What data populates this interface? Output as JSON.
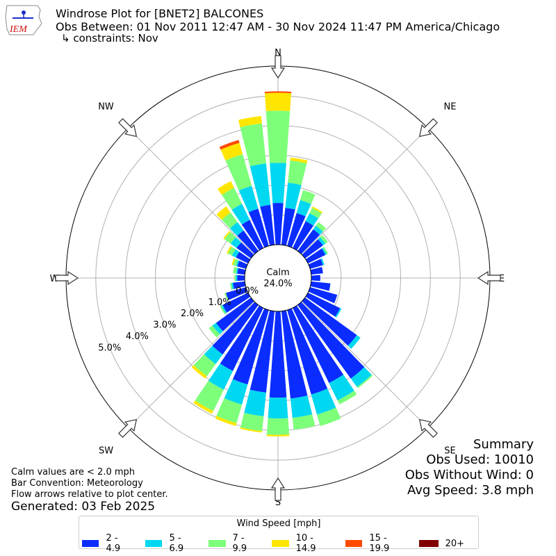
{
  "header": {
    "title_line1": "Windrose Plot for [BNET2] BALCONES",
    "title_line2": "Obs Between: 01 Nov 2011 12:47 AM - 30 Nov 2024 11:47 PM America/Chicago",
    "title_line3": "↳ constraints: Nov",
    "logo_text": "IEM"
  },
  "summary": {
    "heading": "Summary",
    "obs_used": "Obs Used: 10010",
    "obs_without_wind": "Obs Without Wind: 0",
    "avg_speed": "Avg Speed: 3.8 mph"
  },
  "notes": {
    "calm": "Calm values are < 2.0 mph",
    "convention": "Bar Convention: Meteorology",
    "arrows": "Flow arrows relative to plot center.",
    "generated": "Generated: 03 Feb 2025"
  },
  "colors": {
    "bins": [
      "#0a2cff",
      "#00d7f0",
      "#7dff7a",
      "#ffe600",
      "#ff4a00",
      "#800000"
    ],
    "grid": "#b0b0b0"
  },
  "chart_data": {
    "type": "windrose",
    "center_label": "Calm",
    "calm_percent_label": "24.0%",
    "radial_ticks": [
      0.0,
      1.0,
      2.0,
      3.0,
      4.0,
      5.0
    ],
    "radial_tick_labels": [
      "0.0%",
      "1.0%",
      "2.0%",
      "3.0%",
      "4.0%",
      "5.0%"
    ],
    "rmax": 6.0,
    "compass_labels": [
      "N",
      "NE",
      "E",
      "SE",
      "S",
      "SW",
      "W",
      "NW"
    ],
    "legend_title": "Wind Speed [mph]",
    "bins": [
      "2 - 4.9",
      "5 - 6.9",
      "7 - 9.9",
      "10 - 14.9",
      "15 - 19.9",
      "20+"
    ],
    "directions_deg": [
      0,
      10,
      20,
      30,
      40,
      50,
      60,
      70,
      80,
      90,
      100,
      110,
      120,
      130,
      140,
      150,
      160,
      170,
      180,
      190,
      200,
      210,
      220,
      230,
      240,
      250,
      260,
      270,
      280,
      290,
      300,
      310,
      320,
      330,
      340,
      350
    ],
    "cumulative_percent": [
      [
        1.4,
        2.75,
        4.5,
        5.1,
        5.15,
        5.15
      ],
      [
        1.25,
        2.1,
        2.85,
        2.95,
        2.95,
        2.95
      ],
      [
        1.15,
        1.6,
        1.95,
        1.95,
        1.95,
        1.95
      ],
      [
        1.0,
        1.3,
        1.5,
        1.55,
        1.55,
        1.55
      ],
      [
        0.9,
        1.05,
        1.2,
        1.2,
        1.2,
        1.2
      ],
      [
        0.75,
        0.85,
        0.95,
        0.95,
        0.95,
        0.95
      ],
      [
        0.65,
        0.7,
        0.75,
        0.75,
        0.75,
        0.75
      ],
      [
        0.45,
        0.5,
        0.5,
        0.5,
        0.5,
        0.5
      ],
      [
        0.4,
        0.4,
        0.4,
        0.4,
        0.4,
        0.4
      ],
      [
        0.3,
        0.3,
        0.3,
        0.3,
        0.3,
        0.3
      ],
      [
        0.65,
        0.65,
        0.65,
        0.65,
        0.65,
        0.65
      ],
      [
        0.95,
        0.95,
        0.95,
        0.95,
        0.95,
        0.95
      ],
      [
        1.2,
        1.25,
        1.25,
        1.25,
        1.25,
        1.25
      ],
      [
        2.15,
        2.3,
        2.3,
        2.3,
        2.3,
        2.3
      ],
      [
        3.05,
        3.4,
        3.45,
        3.45,
        3.45,
        3.45
      ],
      [
        2.8,
        3.45,
        3.6,
        3.6,
        3.6,
        3.6
      ],
      [
        2.95,
        3.65,
        4.05,
        4.05,
        4.05,
        4.05
      ],
      [
        2.95,
        3.6,
        4.0,
        4.0,
        4.0,
        4.0
      ],
      [
        2.9,
        3.6,
        4.15,
        4.2,
        4.2,
        4.2
      ],
      [
        2.75,
        3.55,
        4.05,
        4.1,
        4.1,
        4.1
      ],
      [
        2.6,
        3.3,
        3.95,
        4.05,
        4.05,
        4.05
      ],
      [
        2.35,
        3.05,
        3.85,
        3.95,
        3.95,
        3.95
      ],
      [
        2.05,
        2.45,
        2.95,
        3.05,
        3.05,
        3.05
      ],
      [
        1.45,
        1.6,
        1.75,
        1.75,
        1.75,
        1.75
      ],
      [
        0.95,
        1.0,
        1.05,
        1.05,
        1.05,
        1.05
      ],
      [
        0.7,
        0.7,
        0.75,
        0.75,
        0.75,
        0.75
      ],
      [
        0.4,
        0.45,
        0.5,
        0.5,
        0.5,
        0.5
      ],
      [
        0.25,
        0.3,
        0.35,
        0.35,
        0.35,
        0.35
      ],
      [
        0.25,
        0.3,
        0.4,
        0.4,
        0.4,
        0.4
      ],
      [
        0.3,
        0.35,
        0.45,
        0.5,
        0.5,
        0.5
      ],
      [
        0.45,
        0.6,
        0.75,
        0.8,
        0.8,
        0.8
      ],
      [
        0.6,
        0.85,
        1.1,
        1.15,
        1.15,
        1.15
      ],
      [
        0.85,
        1.2,
        1.6,
        1.85,
        1.85,
        1.85
      ],
      [
        1.05,
        1.65,
        2.25,
        2.5,
        2.5,
        2.5
      ],
      [
        1.3,
        2.1,
        3.2,
        3.6,
        3.7,
        3.7
      ],
      [
        1.35,
        2.75,
        4.1,
        4.35,
        4.35,
        4.35
      ]
    ]
  }
}
